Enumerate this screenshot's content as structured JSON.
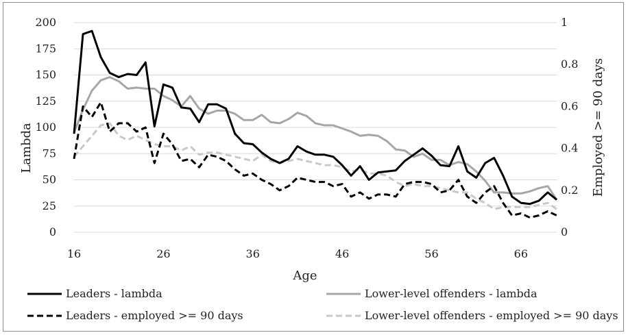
{
  "chart_data": {
    "type": "line",
    "title": "",
    "xlabel": "Age",
    "ylabel": "Lambda",
    "y2label": "Employed >= 90 days",
    "xlim": [
      16,
      70
    ],
    "ylim": [
      0,
      200
    ],
    "y2lim": [
      0,
      1
    ],
    "x_ticks": [
      "16",
      "26",
      "36",
      "46",
      "56",
      "66"
    ],
    "y_ticks": [
      "0",
      "25",
      "50",
      "75",
      "100",
      "125",
      "150",
      "175",
      "200"
    ],
    "y2_ticks": [
      "0",
      "0.2",
      "0.4",
      "0.6",
      "0.8",
      "1"
    ],
    "grid": "horizontal",
    "legend_position": "bottom",
    "x": [
      16,
      17,
      18,
      19,
      20,
      21,
      22,
      23,
      24,
      25,
      26,
      27,
      28,
      29,
      30,
      31,
      32,
      33,
      34,
      35,
      36,
      37,
      38,
      39,
      40,
      41,
      42,
      43,
      44,
      45,
      46,
      47,
      48,
      49,
      50,
      51,
      52,
      53,
      54,
      55,
      56,
      57,
      58,
      59,
      60,
      61,
      62,
      63,
      64,
      65,
      66,
      67,
      68,
      69,
      70
    ],
    "series": [
      {
        "name": "Leaders - lambda",
        "axis": "left",
        "color": "#000000",
        "dash": "solid",
        "values": [
          94,
          189,
          192,
          167,
          152,
          148,
          151,
          150,
          162,
          101,
          141,
          138,
          119,
          118,
          105,
          122,
          122,
          118,
          94,
          85,
          84,
          76,
          70,
          66,
          70,
          82,
          77,
          74,
          74,
          72,
          64,
          54,
          63,
          50,
          57,
          58,
          59,
          68,
          74,
          80,
          73,
          64,
          63,
          82,
          58,
          52,
          66,
          71,
          54,
          34,
          28,
          27,
          30,
          38,
          31
        ]
      },
      {
        "name": "Lower-level offenders - lambda",
        "axis": "left",
        "color": "#a6a6a6",
        "dash": "solid",
        "values": [
          95,
          117,
          135,
          145,
          148,
          144,
          137,
          138,
          137,
          137,
          130,
          126,
          120,
          130,
          118,
          113,
          116,
          116,
          113,
          107,
          107,
          112,
          105,
          104,
          108,
          114,
          111,
          104,
          102,
          102,
          99,
          96,
          92,
          93,
          92,
          87,
          79,
          78,
          72,
          75,
          69,
          69,
          64,
          67,
          65,
          58,
          49,
          38,
          38,
          37,
          37,
          39,
          42,
          44,
          31
        ]
      },
      {
        "name": "Leaders - employed >= 90 days",
        "axis": "right",
        "color": "#000000",
        "dash": "dashed",
        "values": [
          0.35,
          0.6,
          0.55,
          0.62,
          0.48,
          0.52,
          0.52,
          0.48,
          0.5,
          0.33,
          0.47,
          0.42,
          0.34,
          0.35,
          0.31,
          0.37,
          0.36,
          0.34,
          0.3,
          0.27,
          0.28,
          0.25,
          0.23,
          0.2,
          0.22,
          0.26,
          0.25,
          0.24,
          0.24,
          0.22,
          0.23,
          0.17,
          0.19,
          0.16,
          0.18,
          0.18,
          0.17,
          0.23,
          0.24,
          0.24,
          0.23,
          0.19,
          0.2,
          0.25,
          0.17,
          0.14,
          0.19,
          0.22,
          0.14,
          0.08,
          0.09,
          0.07,
          0.08,
          0.1,
          0.08
        ]
      },
      {
        "name": "Lower-level offenders - employed >= 90 days",
        "axis": "right",
        "color": "#c8c8c8",
        "dash": "dashed",
        "values": [
          0.36,
          0.41,
          0.46,
          0.51,
          0.52,
          0.46,
          0.44,
          0.46,
          0.44,
          0.42,
          0.41,
          0.41,
          0.39,
          0.41,
          0.37,
          0.38,
          0.38,
          0.37,
          0.36,
          0.35,
          0.34,
          0.37,
          0.34,
          0.33,
          0.34,
          0.35,
          0.34,
          0.33,
          0.32,
          0.32,
          0.31,
          0.29,
          0.3,
          0.28,
          0.28,
          0.27,
          0.24,
          0.22,
          0.23,
          0.22,
          0.22,
          0.21,
          0.2,
          0.19,
          0.19,
          0.16,
          0.14,
          0.11,
          0.12,
          0.12,
          0.12,
          0.12,
          0.13,
          0.14,
          0.11
        ]
      }
    ]
  }
}
